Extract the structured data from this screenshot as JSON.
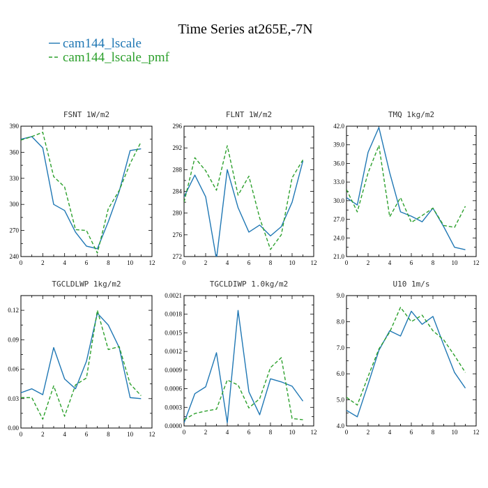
{
  "figure": {
    "title": "Time Series at265E,-7N",
    "legend": [
      {
        "name": "cam144_lscale",
        "color": "#1f77b4",
        "dash": "solid"
      },
      {
        "name": "cam144_lscale_pmf",
        "color": "#2ca02c",
        "dash": "dashed"
      }
    ]
  },
  "chart_data": [
    {
      "type": "line",
      "title": "FSNT  1W/m2",
      "x": [
        0,
        1,
        2,
        3,
        4,
        5,
        6,
        7,
        8,
        9,
        10,
        11
      ],
      "xlim": [
        0,
        12
      ],
      "xticks": [
        0,
        2,
        4,
        6,
        8,
        10,
        12
      ],
      "ylim": [
        240,
        390
      ],
      "yticks": [
        240,
        270,
        300,
        330,
        360,
        390
      ],
      "ytick_labels": [
        "240",
        "270",
        "300",
        "330",
        "360",
        "390"
      ],
      "series": [
        {
          "name": "cam144_lscale",
          "values": [
            375,
            378,
            365,
            300,
            293,
            268,
            252,
            249,
            280,
            315,
            362,
            364
          ]
        },
        {
          "name": "cam144_lscale_pmf",
          "values": [
            374,
            378,
            383,
            332,
            320,
            271,
            270,
            244,
            295,
            316,
            347,
            372
          ]
        }
      ]
    },
    {
      "type": "line",
      "title": "FLNT  1W/m2",
      "x": [
        0,
        1,
        2,
        3,
        4,
        5,
        6,
        7,
        8,
        9,
        10,
        11
      ],
      "xlim": [
        0,
        12
      ],
      "xticks": [
        0,
        2,
        4,
        6,
        8,
        10,
        12
      ],
      "ylim": [
        272,
        296
      ],
      "yticks": [
        272,
        276,
        280,
        284,
        288,
        292,
        296
      ],
      "ytick_labels": [
        "272",
        "276",
        "280",
        "284",
        "288",
        "292",
        "296"
      ],
      "series": [
        {
          "name": "cam144_lscale",
          "values": [
            283,
            287,
            283,
            271.5,
            288,
            281,
            276.5,
            277.8,
            275.8,
            277.5,
            282,
            289.6
          ]
        },
        {
          "name": "cam144_lscale_pmf",
          "values": [
            282,
            290.2,
            287.8,
            284.2,
            292.4,
            283.3,
            286.8,
            279.1,
            273.3,
            276,
            286.5,
            289.8
          ]
        }
      ]
    },
    {
      "type": "line",
      "title": "TMQ  1kg/m2",
      "x": [
        0,
        1,
        2,
        3,
        4,
        5,
        6,
        7,
        8,
        9,
        10,
        11
      ],
      "xlim": [
        0,
        12
      ],
      "xticks": [
        0,
        2,
        4,
        6,
        8,
        10,
        12
      ],
      "ylim": [
        21,
        42
      ],
      "yticks": [
        21,
        24,
        27,
        30,
        33,
        36,
        39,
        42
      ],
      "ytick_labels": [
        "21.0",
        "24.0",
        "27.0",
        "30.0",
        "33.0",
        "36.0",
        "39.0",
        "42.0"
      ],
      "series": [
        {
          "name": "cam144_lscale",
          "values": [
            30.5,
            29.3,
            37.8,
            41.8,
            34.5,
            28.2,
            27.5,
            26.6,
            28.8,
            25.8,
            22.5,
            22.1
          ]
        },
        {
          "name": "cam144_lscale_pmf",
          "values": [
            31.8,
            28.2,
            34.5,
            38.9,
            27.4,
            30.5,
            26.5,
            27.6,
            28.8,
            26,
            25.7,
            29.1
          ]
        }
      ]
    },
    {
      "type": "line",
      "title": "TGCLDLWP  1kg/m2",
      "x": [
        0,
        1,
        2,
        3,
        4,
        5,
        6,
        7,
        8,
        9,
        10,
        11
      ],
      "xlim": [
        0,
        12
      ],
      "xticks": [
        0,
        2,
        4,
        6,
        8,
        10,
        12
      ],
      "ylim": [
        0,
        0.135
      ],
      "yticks": [
        0,
        0.03,
        0.06,
        0.09,
        0.12
      ],
      "ytick_labels": [
        "0.00",
        "0.03",
        "0.06",
        "0.09",
        "0.12"
      ],
      "series": [
        {
          "name": "cam144_lscale",
          "values": [
            0.036,
            0.04,
            0.034,
            0.082,
            0.05,
            0.04,
            0.068,
            0.117,
            0.105,
            0.082,
            0.031,
            0.03
          ]
        },
        {
          "name": "cam144_lscale_pmf",
          "values": [
            0.031,
            0.031,
            0.009,
            0.043,
            0.012,
            0.044,
            0.051,
            0.12,
            0.08,
            0.083,
            0.045,
            0.033
          ]
        }
      ]
    },
    {
      "type": "line",
      "title": "TGCLDIWP  1.0kg/m2",
      "x": [
        0,
        1,
        2,
        3,
        4,
        5,
        6,
        7,
        8,
        9,
        10,
        11
      ],
      "xlim": [
        0,
        12
      ],
      "xticks": [
        0,
        2,
        4,
        6,
        8,
        10,
        12
      ],
      "ylim": [
        0,
        0.0021
      ],
      "yticks": [
        0,
        0.0003,
        0.0006,
        0.0009,
        0.0012,
        0.0015,
        0.0018,
        0.0021
      ],
      "ytick_labels": [
        "0.0000",
        "0.0003",
        "0.0006",
        "0.0009",
        "0.0012",
        "0.0015",
        "0.0018",
        "0.0021"
      ],
      "series": [
        {
          "name": "cam144_lscale",
          "values": [
            5e-05,
            0.00052,
            0.00063,
            0.00118,
            5e-05,
            0.00186,
            0.00055,
            0.00018,
            0.00076,
            0.00071,
            0.00064,
            0.0004
          ]
        },
        {
          "name": "cam144_lscale_pmf",
          "values": [
            0.0001,
            0.0002,
            0.00024,
            0.00027,
            0.00074,
            0.00066,
            0.00029,
            0.00044,
            0.00094,
            0.0011,
            0.00012,
            0.0001
          ]
        }
      ]
    },
    {
      "type": "line",
      "title": "U10  1m/s",
      "x": [
        0,
        1,
        2,
        3,
        4,
        5,
        6,
        7,
        8,
        9,
        10,
        11
      ],
      "xlim": [
        0,
        12
      ],
      "xticks": [
        0,
        2,
        4,
        6,
        8,
        10,
        12
      ],
      "ylim": [
        4,
        9
      ],
      "yticks": [
        4,
        5,
        6,
        7,
        8,
        9
      ],
      "ytick_labels": [
        "4.0",
        "5.0",
        "6.0",
        "7.0",
        "8.0",
        "9.0"
      ],
      "series": [
        {
          "name": "cam144_lscale",
          "values": [
            4.6,
            4.35,
            5.6,
            6.9,
            7.65,
            7.45,
            8.4,
            7.9,
            8.2,
            7.1,
            6.05,
            5.45
          ]
        },
        {
          "name": "cam144_lscale_pmf",
          "values": [
            5.1,
            4.8,
            5.9,
            6.95,
            7.6,
            8.55,
            8.0,
            8.25,
            7.65,
            7.3,
            6.7,
            6.05
          ]
        }
      ]
    }
  ]
}
